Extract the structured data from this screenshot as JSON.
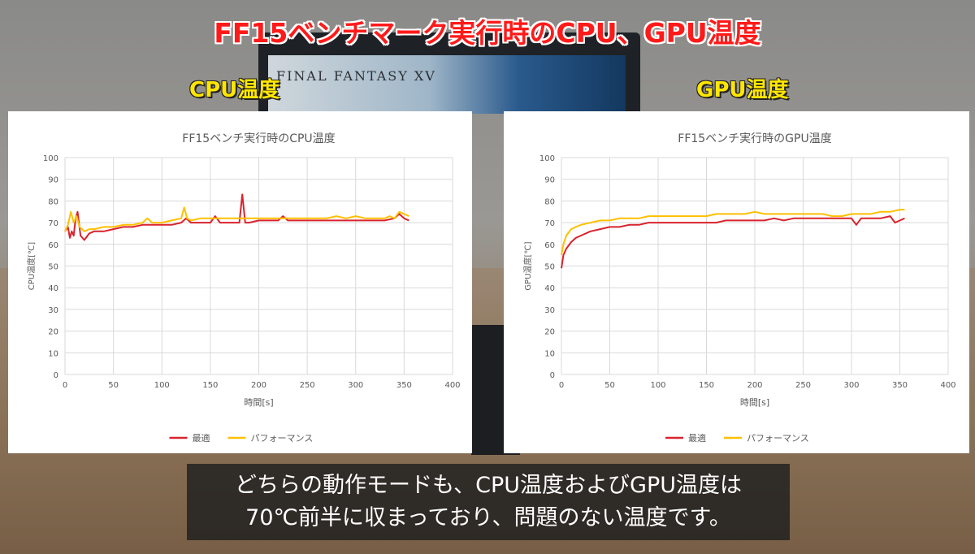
{
  "page_title": "FF15ベンチマーク実行時のCPU、GPU温度",
  "labels": {
    "cpu": "CPU温度",
    "gpu": "GPU温度"
  },
  "subtitle": {
    "line1": "どちらの動作モードも、CPU温度およびGPU温度は",
    "line2": "70℃前半に収まっており、問題のない温度です。"
  },
  "colors": {
    "optimal": "#d9232d",
    "performance": "#ffc000",
    "title": "#ff1a1a",
    "label": "#ffe600"
  },
  "chart_data": [
    {
      "type": "line",
      "title": "FF15ベンチ実行時のCPU温度",
      "xlabel": "時間[s]",
      "ylabel": "CPU温度[℃]",
      "xlim": [
        0,
        400
      ],
      "ylim": [
        0,
        100
      ],
      "xticks": [
        0,
        50,
        100,
        150,
        200,
        250,
        300,
        350,
        400
      ],
      "yticks": [
        0,
        10,
        20,
        30,
        40,
        50,
        60,
        70,
        80,
        90,
        100
      ],
      "grid": true,
      "legend": "bottom",
      "series": [
        {
          "name": "最適",
          "color": "#d9232d",
          "x": [
            0,
            3,
            5,
            7,
            9,
            11,
            13,
            16,
            20,
            25,
            30,
            40,
            50,
            60,
            70,
            80,
            90,
            100,
            110,
            120,
            125,
            130,
            140,
            150,
            155,
            160,
            170,
            180,
            183,
            186,
            190,
            200,
            210,
            220,
            225,
            230,
            240,
            250,
            260,
            270,
            280,
            290,
            300,
            310,
            320,
            330,
            340,
            345,
            350,
            355
          ],
          "y": [
            66,
            68,
            63,
            66,
            64,
            72,
            75,
            64,
            62,
            65,
            66,
            66,
            67,
            68,
            68,
            69,
            69,
            69,
            69,
            70,
            72,
            70,
            70,
            70,
            73,
            70,
            70,
            70,
            83,
            70,
            70,
            71,
            71,
            71,
            73,
            71,
            71,
            71,
            71,
            71,
            71,
            71,
            71,
            71,
            71,
            71,
            72,
            74,
            72,
            71
          ]
        },
        {
          "name": "パフォーマンス",
          "color": "#ffc000",
          "x": [
            0,
            3,
            6,
            9,
            12,
            15,
            20,
            25,
            30,
            40,
            50,
            60,
            70,
            80,
            85,
            90,
            100,
            110,
            120,
            123,
            126,
            130,
            140,
            150,
            160,
            170,
            180,
            190,
            200,
            210,
            220,
            230,
            240,
            250,
            260,
            270,
            280,
            290,
            300,
            310,
            320,
            330,
            335,
            340,
            345,
            350,
            355
          ],
          "y": [
            66,
            69,
            75,
            70,
            73,
            68,
            66,
            67,
            67,
            68,
            68,
            69,
            69,
            70,
            72,
            70,
            70,
            71,
            72,
            77,
            72,
            71,
            72,
            72,
            72,
            72,
            72,
            72,
            72,
            72,
            72,
            72,
            72,
            72,
            72,
            72,
            73,
            72,
            73,
            72,
            72,
            72,
            73,
            72,
            75,
            74,
            73
          ]
        }
      ]
    },
    {
      "type": "line",
      "title": "FF15ベンチ実行時のGPU温度",
      "xlabel": "時間[s]",
      "ylabel": "GPU温度[℃]",
      "xlim": [
        0,
        400
      ],
      "ylim": [
        0,
        100
      ],
      "xticks": [
        0,
        50,
        100,
        150,
        200,
        250,
        300,
        350,
        400
      ],
      "yticks": [
        0,
        10,
        20,
        30,
        40,
        50,
        60,
        70,
        80,
        90,
        100
      ],
      "grid": true,
      "legend": "bottom",
      "series": [
        {
          "name": "最適",
          "color": "#d9232d",
          "x": [
            0,
            2,
            5,
            10,
            15,
            20,
            30,
            40,
            50,
            60,
            70,
            80,
            90,
            100,
            110,
            120,
            130,
            140,
            150,
            160,
            170,
            180,
            190,
            200,
            210,
            220,
            230,
            240,
            250,
            260,
            270,
            280,
            290,
            300,
            305,
            310,
            320,
            330,
            340,
            345,
            350,
            355
          ],
          "y": [
            49,
            55,
            58,
            61,
            63,
            64,
            66,
            67,
            68,
            68,
            69,
            69,
            70,
            70,
            70,
            70,
            70,
            70,
            70,
            70,
            71,
            71,
            71,
            71,
            71,
            72,
            71,
            72,
            72,
            72,
            72,
            72,
            72,
            72,
            69,
            72,
            72,
            72,
            73,
            70,
            71,
            72
          ]
        },
        {
          "name": "パフォーマンス",
          "color": "#ffc000",
          "x": [
            0,
            2,
            5,
            10,
            15,
            20,
            30,
            40,
            50,
            60,
            70,
            80,
            90,
            100,
            110,
            120,
            130,
            140,
            150,
            160,
            170,
            180,
            190,
            200,
            210,
            220,
            230,
            240,
            250,
            260,
            270,
            280,
            290,
            300,
            310,
            320,
            330,
            340,
            350,
            355
          ],
          "y": [
            55,
            60,
            64,
            67,
            68,
            69,
            70,
            71,
            71,
            72,
            72,
            72,
            73,
            73,
            73,
            73,
            73,
            73,
            73,
            74,
            74,
            74,
            74,
            75,
            74,
            74,
            74,
            74,
            74,
            74,
            74,
            73,
            73,
            74,
            74,
            74,
            75,
            75,
            76,
            76
          ]
        }
      ]
    }
  ]
}
